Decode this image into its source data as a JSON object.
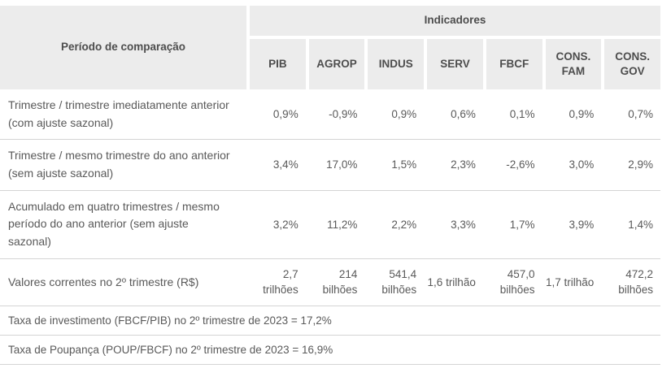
{
  "colors": {
    "header_bg": "#ececec",
    "header_text": "#4d4d4d",
    "body_text": "#595959",
    "divider": "#d4d4d4",
    "page_bg": "#ffffff"
  },
  "chart_data": {
    "type": "table",
    "corner_header": "Período de comparação",
    "group_header": "Indicadores",
    "columns": [
      "PIB",
      "AGROP",
      "INDUS",
      "SERV",
      "FBCF",
      "CONS. FAM",
      "CONS. GOV"
    ],
    "rows": [
      {
        "label": "Trimestre / trimestre imediatamente anterior (com ajuste sazonal)",
        "values": [
          "0,9%",
          "-0,9%",
          "0,9%",
          "0,6%",
          "0,1%",
          "0,9%",
          "0,7%"
        ]
      },
      {
        "label": "Trimestre / mesmo trimestre do ano anterior (sem ajuste sazonal)",
        "values": [
          "3,4%",
          "17,0%",
          "1,5%",
          "2,3%",
          "-2,6%",
          "3,0%",
          "2,9%"
        ]
      },
      {
        "label": "Acumulado em quatro trimestres / mesmo período do ano anterior (sem ajuste sazonal)",
        "values": [
          "3,2%",
          "11,2%",
          "2,2%",
          "3,3%",
          "1,7%",
          "3,9%",
          "1,4%"
        ]
      },
      {
        "label": "Valores correntes no 2º trimestre (R$)",
        "values": [
          "2,7 trilhões",
          "214 bilhões",
          "541,4 bilhões",
          "1,6 trilhão",
          "457,0 bilhões",
          "1,7 trilhão",
          "472,2 bilhões"
        ]
      }
    ],
    "footnotes": [
      "Taxa de investimento (FBCF/PIB) no 2º trimestre de 2023 = 17,2%",
      "Taxa de Poupança (POUP/FBCF) no 2º trimestre de 2023 = 16,9%"
    ],
    "layout": {
      "grid": "off",
      "legend": "none"
    }
  }
}
